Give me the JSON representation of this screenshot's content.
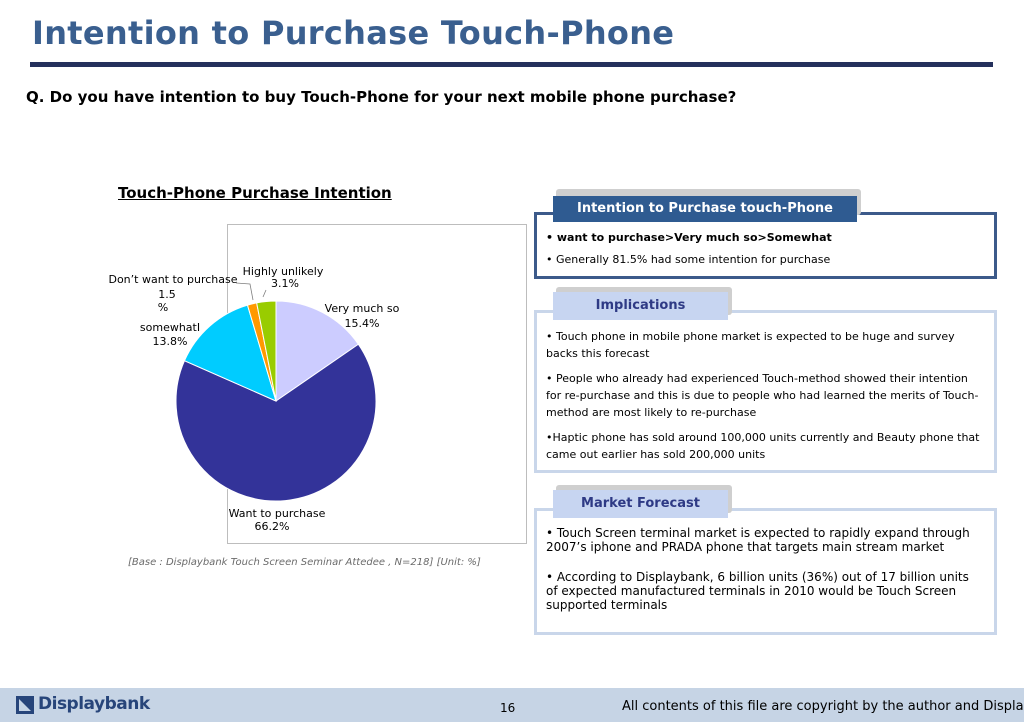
{
  "header": {
    "title": "Intention to Purchase Touch-Phone",
    "question": "Q. Do you have intention to buy Touch-Phone for your next mobile phone purchase?"
  },
  "chart_data": {
    "type": "pie",
    "title": "Touch-Phone Purchase Intention",
    "unit": "%",
    "slices": [
      {
        "label": "Very much so",
        "value": 15.4,
        "value_label": "15.4%",
        "color": "#ccccff"
      },
      {
        "label": "Want to purchase",
        "value": 66.2,
        "value_label": "66.2%",
        "color": "#333399"
      },
      {
        "label": "somewhatI",
        "value": 13.8,
        "value_label": "13.8%",
        "color": "#00ccff"
      },
      {
        "label": "Don’t want to purchase",
        "value": 1.5,
        "value_label": "1.5\n%",
        "value_label_parts": [
          "1.5",
          "%"
        ],
        "color": "#ff9900"
      },
      {
        "label": "Highly unlikely",
        "value": 3.1,
        "value_label": "3.1%",
        "color": "#99cc00"
      }
    ],
    "base_note": "[Base : Displaybank Touch Screen Seminar Attedee , N=218] [Unit: %]"
  },
  "panel_intention": {
    "header": "Intention to Purchase touch-Phone",
    "bullets": [
      "• want to purchase>Very much so>Somewhat",
      "• Generally 81.5% had some intention for purchase"
    ]
  },
  "panel_implications": {
    "header": "Implications",
    "bullets": [
      [
        "• Touch phone in mobile phone market is expected to be huge and survey",
        "backs this forecast"
      ],
      [
        "• People who already had experienced Touch-method showed their intention",
        "for re-purchase and this is due to people who had learned the merits of Touch-",
        "method are most likely to re-purchase"
      ],
      [
        "•Haptic phone has sold around 100,000 units currently and Beauty phone that",
        "came out earlier has sold 200,000 units"
      ]
    ]
  },
  "panel_forecast": {
    "header": "Market Forecast",
    "bullets": [
      [
        "• Touch Screen terminal market is expected to rapidly expand through",
        "2007’s iphone and PRADA phone that targets main stream market"
      ],
      [
        "• According to Displaybank, 6 billion units (36%) out of 17 billion units",
        "of expected manufactured terminals in 2010 would be Touch Screen",
        "supported terminals"
      ]
    ]
  },
  "footer": {
    "logo_text": "Displaybank",
    "page_number": "16",
    "copyright": "All contents of this file are copyright by the author and Displaybank"
  },
  "colors": {
    "title": "#3a5f8f",
    "rule": "#24305c",
    "panel_dark": "#2f5b91",
    "panel_light": "#c7d5f1",
    "footer_bg": "#c6d4e5"
  }
}
